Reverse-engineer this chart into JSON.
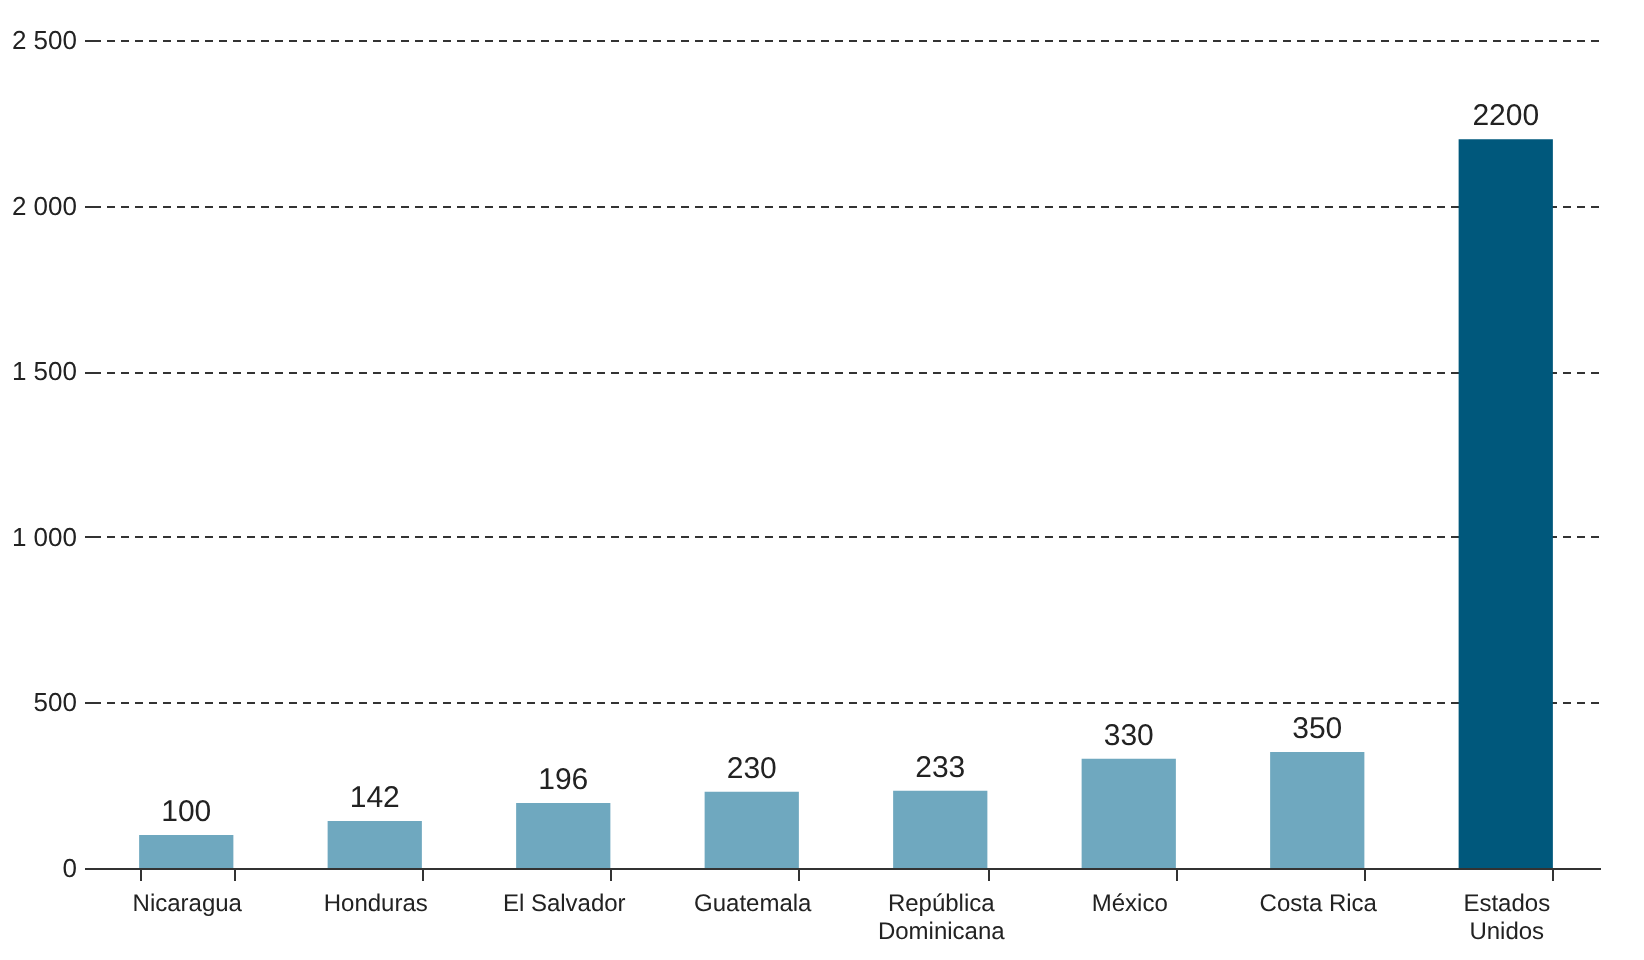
{
  "chart_data": {
    "type": "bar",
    "categories": [
      "Nicaragua",
      "Honduras",
      "El Salvador",
      "Guatemala",
      "República Dominicana",
      "México",
      "Costa Rica",
      "Estados Unidos"
    ],
    "values": [
      100,
      142,
      196,
      230,
      233,
      330,
      350,
      2200
    ],
    "colors": [
      "#6fa8bf",
      "#6fa8bf",
      "#6fa8bf",
      "#6fa8bf",
      "#6fa8bf",
      "#6fa8bf",
      "#6fa8bf",
      "#00587c"
    ],
    "ylim": [
      0,
      2500
    ],
    "yticks": [
      0,
      {
        "value": 500,
        "label": "500"
      },
      {
        "value": 1000,
        "label": "1 000"
      },
      {
        "value": 1500,
        "label": "1 500"
      },
      {
        "value": 2000,
        "label": "2 000"
      },
      {
        "value": 2500,
        "label": "2 500"
      }
    ],
    "grid": "y",
    "data_labels": true
  }
}
